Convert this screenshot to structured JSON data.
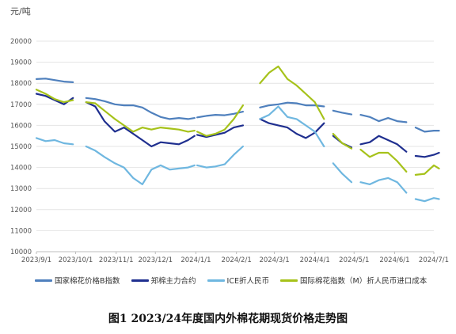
{
  "chart_data": {
    "type": "line",
    "title": "图1 2023/24年度国内外棉花期现货价格走势图",
    "y_unit": "元/吨",
    "ylim": [
      10000,
      20000
    ],
    "y_ticks": [
      10000,
      11000,
      12000,
      13000,
      14000,
      15000,
      16000,
      17000,
      18000,
      19000,
      20000
    ],
    "x_ticks": [
      "2023/9/1",
      "2023/10/1",
      "2023/11/1",
      "2023/12/1",
      "2024/1/1",
      "2024/2/1",
      "2024/3/1",
      "2024/4/1",
      "2024/5/1",
      "2024/6/1",
      "2024/7/1"
    ],
    "x_range": [
      "2023/9/1",
      "2024/7/1"
    ],
    "grid": "horizontal",
    "legend_position": "bottom",
    "series": [
      {
        "name": "国家棉花价格B指数",
        "color": "#4f80bd",
        "segments": [
          [
            [
              "2023/9/1",
              18200
            ],
            [
              "2023/9/8",
              18220
            ],
            [
              "2023/9/15",
              18150
            ],
            [
              "2023/9/22",
              18080
            ],
            [
              "2023/9/29",
              18050
            ]
          ],
          [
            [
              "2023/10/9",
              17300
            ],
            [
              "2023/10/16",
              17250
            ],
            [
              "2023/10/23",
              17150
            ],
            [
              "2023/10/31",
              17000
            ],
            [
              "2023/11/7",
              16950
            ],
            [
              "2023/11/14",
              16950
            ],
            [
              "2023/11/21",
              16850
            ],
            [
              "2023/11/28",
              16600
            ],
            [
              "2023/12/5",
              16400
            ],
            [
              "2023/12/12",
              16300
            ],
            [
              "2023/12/19",
              16350
            ],
            [
              "2023/12/26",
              16300
            ],
            [
              "2023/12/31",
              16350
            ]
          ],
          [
            [
              "2024/1/2",
              16380
            ],
            [
              "2024/1/9",
              16450
            ],
            [
              "2024/1/16",
              16500
            ],
            [
              "2024/1/23",
              16480
            ],
            [
              "2024/1/30",
              16550
            ],
            [
              "2024/2/6",
              16650
            ]
          ],
          [
            [
              "2024/2/19",
              16850
            ],
            [
              "2024/2/26",
              16950
            ],
            [
              "2024/3/4",
              17000
            ],
            [
              "2024/3/11",
              17080
            ],
            [
              "2024/3/18",
              17050
            ],
            [
              "2024/3/25",
              16950
            ],
            [
              "2024/4/1",
              16950
            ],
            [
              "2024/4/8",
              16900
            ]
          ],
          [
            [
              "2024/4/15",
              16700
            ],
            [
              "2024/4/22",
              16600
            ],
            [
              "2024/4/29",
              16520
            ]
          ],
          [
            [
              "2024/5/6",
              16500
            ],
            [
              "2024/5/13",
              16400
            ],
            [
              "2024/5/20",
              16200
            ],
            [
              "2024/5/27",
              16350
            ],
            [
              "2024/6/3",
              16200
            ],
            [
              "2024/6/10",
              16150
            ]
          ],
          [
            [
              "2024/6/17",
              15900
            ],
            [
              "2024/6/24",
              15700
            ],
            [
              "2024/7/1",
              15750
            ],
            [
              "2024/7/5",
              15750
            ]
          ]
        ]
      },
      {
        "name": "郑棉主力合约",
        "color": "#1f2f8f",
        "segments": [
          [
            [
              "2023/9/1",
              17500
            ],
            [
              "2023/9/8",
              17400
            ],
            [
              "2023/9/15",
              17200
            ],
            [
              "2023/9/22",
              17000
            ],
            [
              "2023/9/29",
              17300
            ]
          ],
          [
            [
              "2023/10/9",
              17100
            ],
            [
              "2023/10/16",
              16900
            ],
            [
              "2023/10/23",
              16200
            ],
            [
              "2023/10/31",
              15700
            ],
            [
              "2023/11/7",
              15900
            ],
            [
              "2023/11/14",
              15600
            ],
            [
              "2023/11/21",
              15300
            ],
            [
              "2023/11/28",
              15000
            ],
            [
              "2023/12/5",
              15200
            ],
            [
              "2023/12/12",
              15150
            ],
            [
              "2023/12/19",
              15100
            ],
            [
              "2023/12/26",
              15300
            ],
            [
              "2023/12/31",
              15500
            ]
          ],
          [
            [
              "2024/1/2",
              15550
            ],
            [
              "2024/1/9",
              15450
            ],
            [
              "2024/1/16",
              15550
            ],
            [
              "2024/1/23",
              15650
            ],
            [
              "2024/1/30",
              15900
            ],
            [
              "2024/2/6",
              16000
            ]
          ],
          [
            [
              "2024/2/19",
              16300
            ],
            [
              "2024/2/26",
              16100
            ],
            [
              "2024/3/4",
              16000
            ],
            [
              "2024/3/11",
              15900
            ],
            [
              "2024/3/18",
              15600
            ],
            [
              "2024/3/25",
              15400
            ],
            [
              "2024/4/1",
              15650
            ],
            [
              "2024/4/8",
              16100
            ]
          ],
          [
            [
              "2024/4/15",
              15500
            ],
            [
              "2024/4/22",
              15150
            ],
            [
              "2024/4/29",
              14950
            ]
          ],
          [
            [
              "2024/5/6",
              15100
            ],
            [
              "2024/5/13",
              15200
            ],
            [
              "2024/5/20",
              15500
            ],
            [
              "2024/5/27",
              15300
            ],
            [
              "2024/6/3",
              15100
            ],
            [
              "2024/6/10",
              14750
            ]
          ],
          [
            [
              "2024/6/17",
              14550
            ],
            [
              "2024/6/24",
              14500
            ],
            [
              "2024/7/1",
              14600
            ],
            [
              "2024/7/5",
              14700
            ]
          ]
        ]
      },
      {
        "name": "ICE折人民币",
        "color": "#6fb7e0",
        "segments": [
          [
            [
              "2023/9/1",
              15400
            ],
            [
              "2023/9/8",
              15250
            ],
            [
              "2023/9/15",
              15300
            ],
            [
              "2023/9/22",
              15150
            ],
            [
              "2023/9/29",
              15100
            ]
          ],
          [
            [
              "2023/10/9",
              15000
            ],
            [
              "2023/10/16",
              14800
            ],
            [
              "2023/10/23",
              14500
            ],
            [
              "2023/10/31",
              14200
            ],
            [
              "2023/11/7",
              14000
            ],
            [
              "2023/11/14",
              13500
            ],
            [
              "2023/11/21",
              13200
            ],
            [
              "2023/11/28",
              13900
            ],
            [
              "2023/12/5",
              14100
            ],
            [
              "2023/12/12",
              13900
            ],
            [
              "2023/12/19",
              13950
            ],
            [
              "2023/12/26",
              14000
            ],
            [
              "2023/12/31",
              14100
            ]
          ],
          [
            [
              "2024/1/2",
              14100
            ],
            [
              "2024/1/9",
              14000
            ],
            [
              "2024/1/16",
              14050
            ],
            [
              "2024/1/23",
              14150
            ],
            [
              "2024/1/30",
              14600
            ],
            [
              "2024/2/6",
              15000
            ]
          ],
          [
            [
              "2024/2/19",
              16300
            ],
            [
              "2024/2/26",
              16500
            ],
            [
              "2024/3/4",
              16900
            ],
            [
              "2024/3/11",
              16400
            ],
            [
              "2024/3/18",
              16300
            ],
            [
              "2024/3/25",
              16000
            ],
            [
              "2024/4/1",
              15700
            ],
            [
              "2024/4/8",
              15000
            ]
          ],
          [
            [
              "2024/4/15",
              14200
            ],
            [
              "2024/4/22",
              13700
            ],
            [
              "2024/4/29",
              13300
            ]
          ],
          [
            [
              "2024/5/6",
              13300
            ],
            [
              "2024/5/13",
              13200
            ],
            [
              "2024/5/20",
              13400
            ],
            [
              "2024/5/27",
              13500
            ],
            [
              "2024/6/3",
              13300
            ],
            [
              "2024/6/10",
              12800
            ]
          ],
          [
            [
              "2024/6/17",
              12500
            ],
            [
              "2024/6/24",
              12400
            ],
            [
              "2024/7/1",
              12550
            ],
            [
              "2024/7/5",
              12500
            ]
          ]
        ]
      },
      {
        "name": "国际棉花指数（M）折人民币进口成本",
        "color": "#a6c21a",
        "segments": [
          [
            [
              "2023/9/1",
              17700
            ],
            [
              "2023/9/8",
              17500
            ],
            [
              "2023/9/15",
              17250
            ],
            [
              "2023/9/22",
              17100
            ],
            [
              "2023/9/29",
              17200
            ]
          ],
          [
            [
              "2023/10/9",
              17100
            ],
            [
              "2023/10/16",
              17050
            ],
            [
              "2023/10/23",
              16700
            ],
            [
              "2023/10/31",
              16300
            ],
            [
              "2023/11/7",
              16000
            ],
            [
              "2023/11/14",
              15700
            ],
            [
              "2023/11/21",
              15900
            ],
            [
              "2023/11/28",
              15800
            ],
            [
              "2023/12/5",
              15900
            ],
            [
              "2023/12/12",
              15850
            ],
            [
              "2023/12/19",
              15800
            ],
            [
              "2023/12/26",
              15700
            ],
            [
              "2023/12/31",
              15750
            ]
          ],
          [
            [
              "2024/1/2",
              15700
            ],
            [
              "2024/1/9",
              15500
            ],
            [
              "2024/1/16",
              15600
            ],
            [
              "2024/1/23",
              15800
            ],
            [
              "2024/1/30",
              16300
            ],
            [
              "2024/2/6",
              16950
            ]
          ],
          [
            [
              "2024/2/19",
              18000
            ],
            [
              "2024/2/26",
              18500
            ],
            [
              "2024/3/4",
              18800
            ],
            [
              "2024/3/11",
              18200
            ],
            [
              "2024/3/18",
              17900
            ],
            [
              "2024/3/25",
              17500
            ],
            [
              "2024/4/1",
              17100
            ],
            [
              "2024/4/8",
              16300
            ]
          ],
          [
            [
              "2024/4/15",
              15600
            ],
            [
              "2024/4/22",
              15150
            ],
            [
              "2024/4/29",
              14900
            ]
          ],
          [
            [
              "2024/5/6",
              14850
            ],
            [
              "2024/5/13",
              14500
            ],
            [
              "2024/5/20",
              14700
            ],
            [
              "2024/5/27",
              14700
            ],
            [
              "2024/6/3",
              14300
            ],
            [
              "2024/6/10",
              13800
            ]
          ],
          [
            [
              "2024/6/17",
              13650
            ],
            [
              "2024/6/24",
              13700
            ],
            [
              "2024/7/1",
              14100
            ],
            [
              "2024/7/5",
              13950
            ]
          ]
        ]
      }
    ]
  }
}
